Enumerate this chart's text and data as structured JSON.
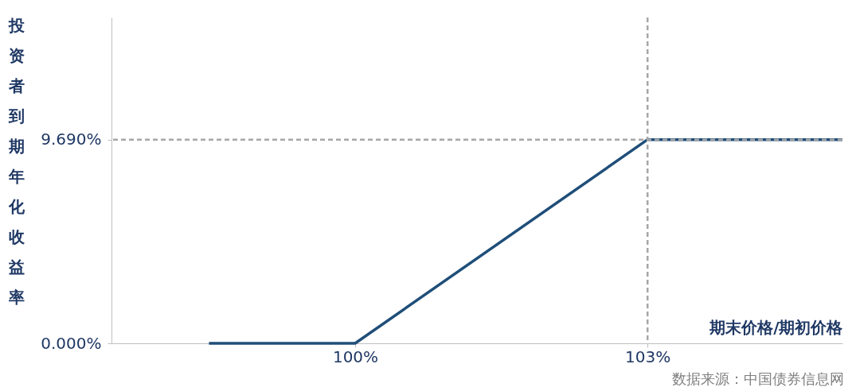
{
  "chart_data": {
    "type": "line",
    "xlabel": "期末价格/期初价格",
    "ylabel": "投资者到期年化收益率",
    "x": [
      98.5,
      100,
      103,
      105
    ],
    "series": [
      {
        "color": "#1f4e79",
        "values": [
          0,
          0,
          9.69,
          9.69
        ]
      }
    ],
    "xlim": [
      97.5,
      105
    ],
    "ylim": [
      0,
      15.5
    ],
    "xticks": [
      {
        "value": 100,
        "label": "100%"
      },
      {
        "value": 103,
        "label": "103%"
      }
    ],
    "yticks": [
      {
        "value": 0,
        "label": "0.000%"
      },
      {
        "value": 9.69,
        "label": "9.690%"
      }
    ],
    "ref_lines": [
      {
        "axis": "y",
        "value": 9.69,
        "color": "#a6a6a6",
        "line_style": "dashed"
      },
      {
        "axis": "x",
        "value": 103,
        "color": "#a6a6a6",
        "line_style": "dashed"
      }
    ],
    "grid": false,
    "marker": "none",
    "line_style": "solid",
    "annotations": [
      "数据来源：中国债券信息网"
    ]
  }
}
